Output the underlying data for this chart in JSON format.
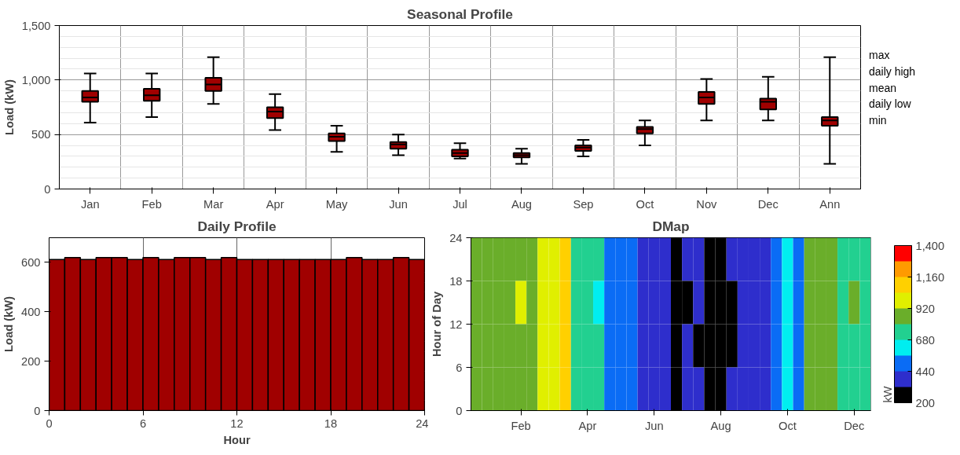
{
  "chart_data": [
    {
      "type": "box",
      "title": "Seasonal Profile",
      "ylabel": "Load (kW)",
      "color": "#a00000",
      "grid": true,
      "categories": [
        "Jan",
        "Feb",
        "Mar",
        "Apr",
        "May",
        "Jun",
        "Jul",
        "Aug",
        "Sep",
        "Oct",
        "Nov",
        "Dec",
        "Ann"
      ],
      "boxes": [
        {
          "low": 610,
          "q1": 800,
          "median": 840,
          "q3": 900,
          "high": 1060
        },
        {
          "low": 660,
          "q1": 810,
          "median": 860,
          "q3": 920,
          "high": 1060
        },
        {
          "low": 780,
          "q1": 900,
          "median": 960,
          "q3": 1020,
          "high": 1210
        },
        {
          "low": 540,
          "q1": 650,
          "median": 710,
          "q3": 750,
          "high": 870
        },
        {
          "low": 340,
          "q1": 440,
          "median": 480,
          "q3": 510,
          "high": 580
        },
        {
          "low": 310,
          "q1": 370,
          "median": 410,
          "q3": 430,
          "high": 500
        },
        {
          "low": 280,
          "q1": 300,
          "median": 330,
          "q3": 360,
          "high": 420
        },
        {
          "low": 230,
          "q1": 290,
          "median": 310,
          "q3": 330,
          "high": 370
        },
        {
          "low": 300,
          "q1": 350,
          "median": 380,
          "q3": 400,
          "high": 450
        },
        {
          "low": 400,
          "q1": 510,
          "median": 550,
          "q3": 570,
          "high": 630
        },
        {
          "low": 630,
          "q1": 780,
          "median": 840,
          "q3": 890,
          "high": 1010
        },
        {
          "low": 630,
          "q1": 730,
          "median": 800,
          "q3": 830,
          "high": 1030
        },
        {
          "low": 230,
          "q1": 580,
          "median": 630,
          "q3": 660,
          "high": 1210
        }
      ],
      "ylim": [
        0,
        1500
      ],
      "yticks": [
        0,
        500,
        {
          "value": 1000,
          "label": "1,000"
        },
        {
          "value": 1500,
          "label": "1,500"
        }
      ],
      "annotations": [
        "max",
        "daily high",
        "mean",
        "daily low",
        "min"
      ]
    },
    {
      "type": "bar",
      "title": "Daily Profile",
      "xlabel": "Hour",
      "ylabel": "Load (kW)",
      "color": "#a00000",
      "grid": true,
      "x": [
        0.5,
        1.5,
        2.5,
        3.5,
        4.5,
        5.5,
        6.5,
        7.5,
        8.5,
        9.5,
        10.5,
        11.5,
        12.5,
        13.5,
        14.5,
        15.5,
        16.5,
        17.5,
        18.5,
        19.5,
        20.5,
        21.5,
        22.5,
        23.5
      ],
      "values": [
        612,
        620,
        612,
        620,
        620,
        612,
        620,
        612,
        620,
        620,
        612,
        620,
        612,
        612,
        612,
        612,
        612,
        612,
        612,
        620,
        612,
        612,
        620,
        612
      ],
      "xlim": [
        0,
        24
      ],
      "xticks": [
        0,
        6,
        12,
        18,
        24
      ],
      "ylim": [
        0,
        700
      ],
      "yticks": [
        0,
        200,
        400,
        600
      ]
    },
    {
      "type": "heatmap",
      "title": "DMap",
      "ylabel": "Hour of Day",
      "clabel": "kW",
      "categories": [
        null,
        null,
        null,
        null,
        "Feb",
        null,
        null,
        null,
        null,
        null,
        "Apr",
        null,
        null,
        null,
        null,
        null,
        "Jun",
        null,
        null,
        null,
        null,
        null,
        "Aug",
        null,
        null,
        null,
        null,
        null,
        "Oct",
        null,
        null,
        null,
        null,
        null,
        "Dec",
        null
      ],
      "ylim": [
        0,
        24
      ],
      "yticks": [
        0,
        6,
        12,
        18,
        24
      ],
      "cells": [
        [
          880,
          860,
          900,
          870,
          900,
          880,
          960,
          1000,
          1060,
          740,
          700,
          700,
          500,
          480,
          470,
          420,
          400,
          410,
          300,
          380,
          360,
          300,
          290,
          320,
          380,
          390,
          400,
          470,
          560,
          500,
          880,
          860,
          870,
          760,
          790,
          780
        ],
        [
          870,
          880,
          900,
          880,
          920,
          860,
          940,
          1000,
          1060,
          720,
          700,
          660,
          500,
          480,
          470,
          420,
          400,
          400,
          300,
          310,
          360,
          310,
          290,
          300,
          380,
          390,
          400,
          470,
          580,
          500,
          900,
          860,
          880,
          760,
          800,
          780
        ],
        [
          880,
          850,
          890,
          870,
          900,
          890,
          960,
          1010,
          1050,
          740,
          690,
          700,
          490,
          480,
          460,
          410,
          400,
          410,
          300,
          380,
          310,
          300,
          290,
          310,
          380,
          380,
          400,
          480,
          560,
          520,
          880,
          860,
          870,
          770,
          790,
          780
        ],
        [
          870,
          860,
          900,
          880,
          910,
          880,
          960,
          990,
          1060,
          730,
          700,
          690,
          500,
          480,
          470,
          420,
          400,
          410,
          300,
          380,
          360,
          310,
          300,
          320,
          390,
          390,
          400,
          470,
          560,
          500,
          880,
          870,
          870,
          760,
          780,
          790
        ]
      ],
      "clim": [
        200,
        1400
      ],
      "cticks": [
        200,
        440,
        680,
        920,
        {
          "value": 1160,
          "label": "1,160"
        },
        {
          "value": 1400,
          "label": "1,400"
        }
      ],
      "colors": [
        "#000000",
        "#2e2ecc",
        "#0a6cf5",
        "#00eef0",
        "#22d090",
        "#6aae2a",
        "#e0ef00",
        "#ffd000",
        "#ff9a00",
        "#ff0000"
      ]
    }
  ]
}
